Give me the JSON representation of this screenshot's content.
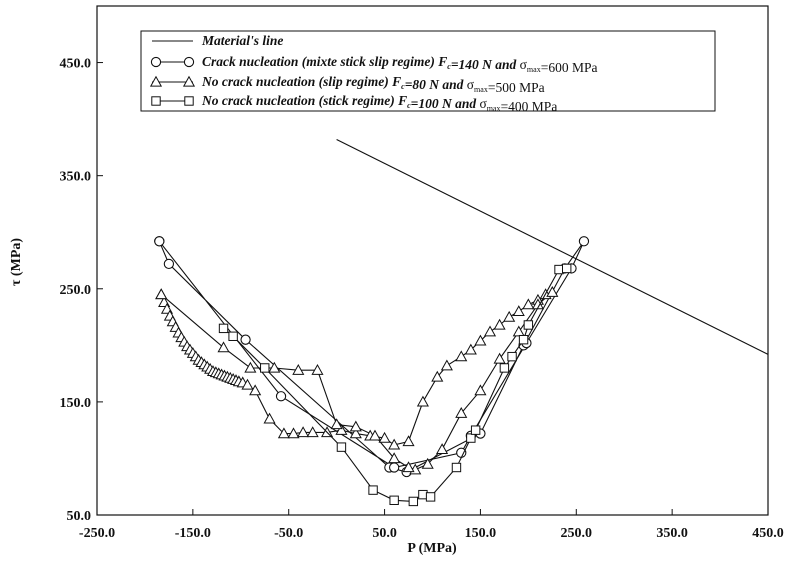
{
  "chart_data": {
    "type": "line",
    "xlabel": "P (MPa)",
    "ylabel": "τ (MPa)",
    "xlim": [
      -250,
      450
    ],
    "ylim": [
      50,
      500
    ],
    "x_ticks": [
      -250,
      -150,
      -50,
      50,
      150,
      250,
      350,
      450
    ],
    "x_tick_labels": [
      "-250.0",
      "-150.0",
      "-50.0",
      "50.0",
      "150.0",
      "250.0",
      "350.0",
      "450.0"
    ],
    "y_ticks": [
      50,
      150,
      250,
      350,
      450
    ],
    "y_tick_labels": [
      "50.0",
      "150.0",
      "250.0",
      "350.0",
      "450.0"
    ],
    "grid": false,
    "legend_position": "top",
    "legend": [
      "Material's line",
      "Crack nucleation (mixte stick slip regime) Fc=140 N and σmax=600 MPa",
      "No crack nucleation (slip regime) Fc=80 N and σmax=500 MPa",
      "No crack nucleation (stick regime) Fc=100 N and σmax=400 MPa"
    ],
    "series": [
      {
        "name": "Material's line",
        "marker": "none",
        "x": [
          0,
          450
        ],
        "y": [
          382,
          192
        ]
      },
      {
        "name": "Crack nucleation (mixte stick slip regime) Fc=140 N and σmax=600 MPa",
        "marker": "circle",
        "x": [
          -185,
          -175,
          -95,
          55,
          73,
          150,
          195,
          238,
          258,
          245,
          198,
          140,
          130,
          60,
          -58,
          -185
        ],
        "y": [
          292,
          272,
          205,
          92,
          88,
          122,
          200,
          268,
          292,
          268,
          202,
          120,
          105,
          92,
          155,
          292
        ]
      },
      {
        "name": "No crack nucleation (slip regime) Fc=80 N and σmax=500 MPa",
        "marker": "triangle",
        "x": [
          -183,
          -180,
          -177,
          -174,
          -171,
          -168,
          -165,
          -162,
          -159,
          -156,
          -153,
          -150,
          -147,
          -144,
          -141,
          -138,
          -135,
          -132,
          -129,
          -126,
          -123,
          -120,
          -117,
          -114,
          -111,
          -108,
          -105,
          -102,
          -98,
          -93,
          -85,
          -70,
          -55,
          -45,
          -35,
          -25,
          -10,
          5,
          20,
          35,
          50,
          60,
          75,
          90,
          105,
          115,
          130,
          140,
          150,
          160,
          170,
          180,
          190,
          200,
          210,
          218,
          225,
          210,
          190,
          170,
          150,
          130,
          110,
          95,
          82,
          75,
          60,
          40,
          20,
          0,
          -20,
          -40,
          -65,
          -90,
          -118,
          -183
        ],
        "y": [
          245,
          238,
          232,
          226,
          221,
          216,
          211,
          207,
          203,
          199,
          196,
          193,
          190,
          187,
          185,
          183,
          181,
          179,
          177,
          176,
          175,
          174,
          173,
          172,
          171,
          170,
          169,
          168,
          167,
          165,
          160,
          135,
          122,
          122,
          123,
          123,
          123,
          125,
          122,
          120,
          118,
          112,
          115,
          150,
          172,
          182,
          190,
          196,
          204,
          212,
          218,
          225,
          230,
          236,
          240,
          245,
          247,
          236,
          212,
          188,
          160,
          140,
          108,
          95,
          90,
          92,
          100,
          120,
          128,
          130,
          178,
          178,
          180,
          180,
          198,
          245
        ]
      },
      {
        "name": "No crack nucleation (stick regime) Fc=100 N and σmax=400 MPa",
        "marker": "square",
        "x": [
          -118,
          -108,
          -75,
          5,
          38,
          60,
          80,
          90,
          98,
          125,
          140,
          145,
          175,
          183,
          195,
          200,
          232,
          240
        ],
        "y": [
          215,
          208,
          180,
          110,
          72,
          63,
          62,
          68,
          66,
          92,
          118,
          125,
          180,
          190,
          205,
          218,
          267,
          268
        ]
      }
    ]
  }
}
